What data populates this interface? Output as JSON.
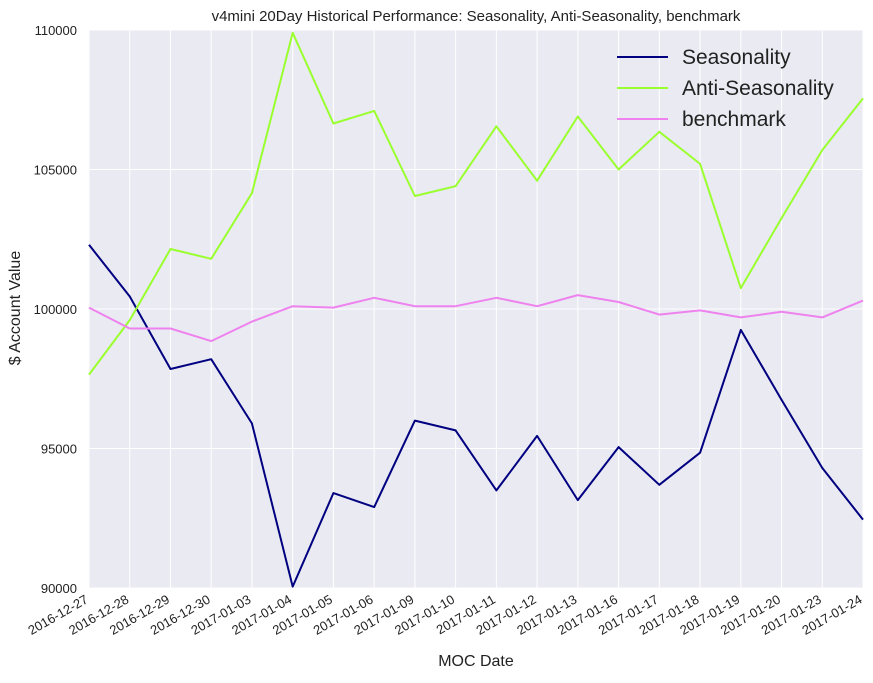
{
  "chart_data": {
    "type": "line",
    "title": "v4mini 20Day Historical Performance: Seasonality, Anti-Seasonality, benchmark",
    "xlabel": "MOC Date",
    "ylabel": "$ Account Value",
    "ylim": [
      90000,
      110000
    ],
    "yticks": [
      "90000",
      "95000",
      "100000",
      "105000",
      "110000"
    ],
    "ytick_values": [
      90000,
      95000,
      100000,
      105000,
      110000
    ],
    "grid": true,
    "legend_position": "top-right",
    "background": "#eaeaf2",
    "grid_color": "#ffffff",
    "categories": [
      "2016-12-27",
      "2016-12-28",
      "2016-12-29",
      "2016-12-30",
      "2017-01-03",
      "2017-01-04",
      "2017-01-05",
      "2017-01-06",
      "2017-01-09",
      "2017-01-10",
      "2017-01-11",
      "2017-01-12",
      "2017-01-13",
      "2017-01-16",
      "2017-01-17",
      "2017-01-18",
      "2017-01-19",
      "2017-01-20",
      "2017-01-23",
      "2017-01-24"
    ],
    "series": [
      {
        "name": "Seasonality",
        "color": "#000080",
        "values": [
          102300,
          100450,
          97850,
          98200,
          95900,
          90050,
          93400,
          92900,
          96000,
          95650,
          93500,
          95450,
          93150,
          95050,
          93700,
          94850,
          99250,
          96750,
          94300,
          92450
        ]
      },
      {
        "name": "Anti-Seasonality",
        "color": "#9aff2e",
        "values": [
          97650,
          99600,
          102150,
          101800,
          104150,
          109900,
          106650,
          107100,
          104050,
          104400,
          106550,
          104600,
          106900,
          105000,
          106350,
          105200,
          100750,
          103250,
          105700,
          107550
        ]
      },
      {
        "name": "benchmark",
        "color": "#ee82ee",
        "values": [
          100050,
          99300,
          99300,
          98850,
          99550,
          100100,
          100050,
          100400,
          100100,
          100100,
          100400,
          100100,
          100500,
          100250,
          99800,
          99950,
          99700,
          99900,
          99700,
          100300
        ]
      }
    ]
  }
}
